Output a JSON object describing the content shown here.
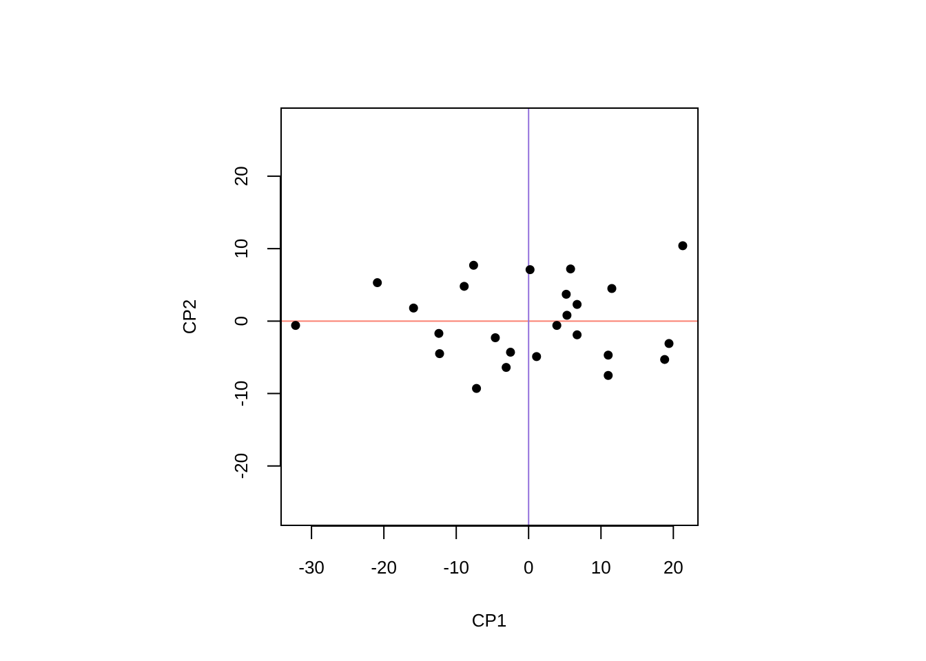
{
  "chart_data": {
    "type": "scatter",
    "title": "",
    "xlabel": "CP1",
    "ylabel": "CP2",
    "xlim": [
      -34.2,
      23.4
    ],
    "ylim": [
      -28.2,
      29.4
    ],
    "x_ticks": [
      -30,
      -20,
      -10,
      0,
      10,
      20
    ],
    "y_ticks": [
      -20,
      -10,
      0,
      10,
      20
    ],
    "x_tick_labels": [
      "-30",
      "-20",
      "-10",
      "0",
      "10",
      "20"
    ],
    "y_tick_labels": [
      "-20",
      "-10",
      "0",
      "10",
      "20"
    ],
    "reference_lines": [
      {
        "orientation": "horizontal",
        "value": 0,
        "color": "#fa8072"
      },
      {
        "orientation": "vertical",
        "value": 0,
        "color": "#9370db"
      }
    ],
    "point_color": "#000000",
    "points": [
      {
        "x": -32.2,
        "y": -0.6
      },
      {
        "x": -20.9,
        "y": 5.3
      },
      {
        "x": -15.9,
        "y": 1.8
      },
      {
        "x": -12.4,
        "y": -1.7
      },
      {
        "x": -12.3,
        "y": -4.5
      },
      {
        "x": -8.9,
        "y": 4.8
      },
      {
        "x": -7.6,
        "y": 7.7
      },
      {
        "x": -7.2,
        "y": -9.3
      },
      {
        "x": -4.6,
        "y": -2.3
      },
      {
        "x": -3.1,
        "y": -6.4
      },
      {
        "x": -2.5,
        "y": -4.3
      },
      {
        "x": 0.2,
        "y": 7.1
      },
      {
        "x": 1.1,
        "y": -4.9
      },
      {
        "x": 3.9,
        "y": -0.6
      },
      {
        "x": 5.2,
        "y": 3.7
      },
      {
        "x": 5.3,
        "y": 0.8
      },
      {
        "x": 5.8,
        "y": 7.2
      },
      {
        "x": 6.7,
        "y": 2.3
      },
      {
        "x": 6.7,
        "y": -1.9
      },
      {
        "x": 11.0,
        "y": -4.7
      },
      {
        "x": 11.0,
        "y": -7.5
      },
      {
        "x": 11.5,
        "y": 4.5
      },
      {
        "x": 18.8,
        "y": -5.3
      },
      {
        "x": 19.4,
        "y": -3.1
      },
      {
        "x": 21.3,
        "y": 10.4
      }
    ]
  }
}
